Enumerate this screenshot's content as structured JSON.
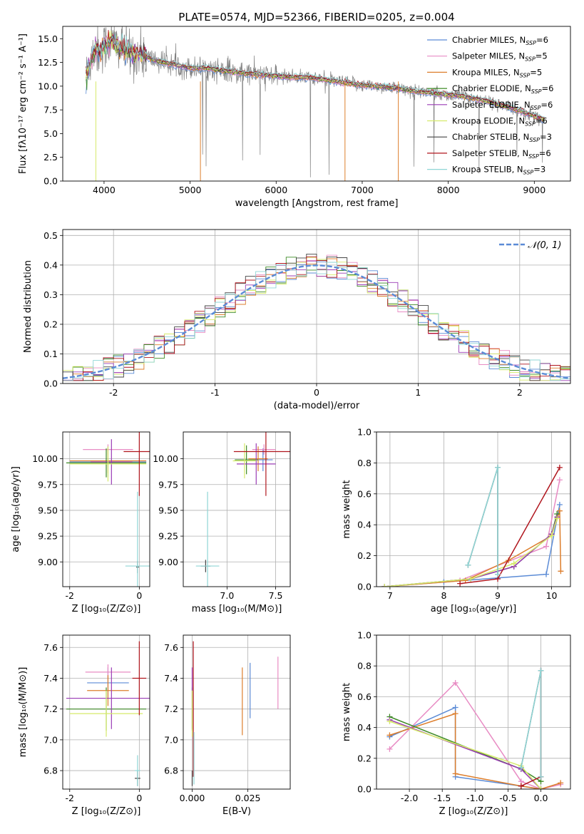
{
  "colors": {
    "chabrier_miles": "#5b8bd6",
    "salpeter_miles": "#e88cc4",
    "kroupa_miles": "#dd7e2c",
    "chabrier_elodie": "#3e8a26",
    "salpeter_elodie": "#9a3cb5",
    "kroupa_elodie": "#d6ea6a",
    "chabrier_stelib": "#444444",
    "salpeter_stelib": "#b0151d",
    "kroupa_stelib": "#8fd6d6",
    "data_spectrum": "#808080",
    "normal": "#5b8bd6",
    "grid": "#b0b0b0"
  },
  "legend": {
    "models": [
      {
        "label": "Chabrier MILES, N",
        "nssp": "=6",
        "color": "#5b8bd6"
      },
      {
        "label": "Salpeter MILES, N",
        "nssp": "=5",
        "color": "#e88cc4"
      },
      {
        "label": "Kroupa MILES, N",
        "nssp": "=5",
        "color": "#dd7e2c"
      },
      {
        "label": "Chabrier ELODIE, N",
        "nssp": "=6",
        "color": "#3e8a26"
      },
      {
        "label": "Salpeter ELODIE, N",
        "nssp": "=6",
        "color": "#9a3cb5"
      },
      {
        "label": "Kroupa ELODIE, N",
        "nssp": "=6",
        "color": "#d6ea6a"
      },
      {
        "label": "Chabrier STELIB, N",
        "nssp": "=3",
        "color": "#444444"
      },
      {
        "label": "Salpeter STELIB, N",
        "nssp": "=6",
        "color": "#b0151d"
      },
      {
        "label": "Kroupa STELIB, N",
        "nssp": "=3",
        "color": "#8fd6d6"
      }
    ],
    "nssp_subscript": "SSP",
    "normal_label": "𝒩(0, 1)"
  },
  "chart_data": [
    {
      "id": "spectrum",
      "type": "line",
      "title": "PLATE=0574, MJD=52366, FIBERID=0205, z=0.004",
      "xlabel": "wavelength [Angstrom, rest frame]",
      "ylabel": "Flux [fλ10⁻¹⁷ erg cm⁻² s⁻¹ A⁻¹]",
      "xlim": [
        3520,
        9420
      ],
      "ylim": [
        0,
        16.3
      ],
      "xticks": [
        4000,
        5000,
        6000,
        7000,
        8000,
        9000
      ],
      "yticks": [
        0.0,
        2.5,
        5.0,
        7.5,
        10.0,
        12.5,
        15.0
      ],
      "grid": false,
      "legend_position": "upper-right",
      "model_envelope": {
        "wavelength": [
          3790,
          3850,
          3900,
          3950,
          4000,
          4100,
          4200,
          4300,
          4400,
          4600,
          4800,
          5000,
          5200,
          5500,
          5800,
          6100,
          6400,
          6700,
          7000,
          7300,
          7600,
          7900,
          8200,
          8500,
          8800,
          9100
        ],
        "flux": [
          11.0,
          13.0,
          14.0,
          13.5,
          14.2,
          14.7,
          14.0,
          13.5,
          13.4,
          12.7,
          12.3,
          11.9,
          11.9,
          11.5,
          11.2,
          11.0,
          10.9,
          10.5,
          10.1,
          9.9,
          9.5,
          9.2,
          8.9,
          8.3,
          7.5,
          6.5
        ]
      }
    },
    {
      "id": "residuals",
      "type": "step",
      "xlabel": "(data-model)/error",
      "ylabel": "Normed distribution",
      "xlim": [
        -2.5,
        2.5
      ],
      "ylim": [
        0,
        0.52
      ],
      "xticks": [
        -2,
        -1,
        0,
        1,
        2
      ],
      "yticks": [
        0.0,
        0.1,
        0.2,
        0.3,
        0.4,
        0.5
      ],
      "grid": true,
      "legend_position": "upper-right",
      "normal": {
        "mean": 0,
        "sigma": 1
      }
    },
    {
      "id": "age-vs-z",
      "type": "errorbar",
      "xlabel": "Z [log₁₀(Z/Z⊙)]",
      "ylabel": "age  [log₁₀(age/yr)]",
      "xlim": [
        -2.2,
        0.3
      ],
      "ylim": [
        8.76,
        10.26
      ],
      "xticks": [
        -2,
        0
      ],
      "yticks": [
        9.0,
        9.25,
        9.5,
        9.75,
        10.0
      ],
      "grid": true,
      "points": [
        {
          "model": "chabrier_miles",
          "x": -0.9,
          "xerr": 1.1,
          "y": 9.97,
          "yerr": 0.15
        },
        {
          "model": "salpeter_miles",
          "x": -0.9,
          "xerr": 0.72,
          "y": 10.09,
          "yerr": 0.05
        },
        {
          "model": "kroupa_miles",
          "x": -0.9,
          "xerr": 1.1,
          "y": 9.98,
          "yerr": 0.12
        },
        {
          "model": "chabrier_elodie",
          "x": -0.95,
          "xerr": 1.15,
          "y": 9.96,
          "yerr": 0.14
        },
        {
          "model": "salpeter_elodie",
          "x": -0.8,
          "xerr": 0.6,
          "y": 9.97,
          "yerr": 0.22
        },
        {
          "model": "kroupa_elodie",
          "x": -0.9,
          "xerr": 1.1,
          "y": 9.95,
          "yerr": 0.17
        },
        {
          "model": "chabrier_stelib",
          "x": -0.05,
          "xerr": 0.04,
          "y": 8.95,
          "yerr": 0.06
        },
        {
          "model": "salpeter_stelib",
          "x": 0.0,
          "xerr": 0.45,
          "y": 10.07,
          "yerr": 0.43
        },
        {
          "model": "kroupa_stelib",
          "x": -0.05,
          "xerr": 0.35,
          "y": 8.96,
          "yerr": 0.72
        }
      ]
    },
    {
      "id": "age-vs-mass",
      "type": "errorbar",
      "xlabel": "mass [log₁₀(M/M⊙)]",
      "ylabel": "",
      "xlim": [
        6.55,
        7.65
      ],
      "ylim": [
        8.76,
        10.26
      ],
      "xticks": [
        7.0,
        7.5
      ],
      "yticks": [
        9.0,
        9.25,
        9.5,
        9.75,
        10.0
      ],
      "grid": true,
      "points": [
        {
          "model": "chabrier_miles",
          "x": 7.37,
          "xerr": 0.1,
          "y": 9.99,
          "yerr": 0.11
        },
        {
          "model": "salpeter_miles",
          "x": 7.38,
          "xerr": 0.12,
          "y": 10.09,
          "yerr": 0.05
        },
        {
          "model": "kroupa_miles",
          "x": 7.32,
          "xerr": 0.1,
          "y": 10.0,
          "yerr": 0.12
        },
        {
          "model": "chabrier_elodie",
          "x": 7.2,
          "xerr": 0.12,
          "y": 9.99,
          "yerr": 0.14
        },
        {
          "model": "salpeter_elodie",
          "x": 7.3,
          "xerr": 0.2,
          "y": 9.95,
          "yerr": 0.2
        },
        {
          "model": "kroupa_elodie",
          "x": 7.18,
          "xerr": 0.12,
          "y": 9.98,
          "yerr": 0.17
        },
        {
          "model": "chabrier_stelib",
          "x": 6.78,
          "xerr": 0.05,
          "y": 8.96,
          "yerr": 0.06
        },
        {
          "model": "salpeter_stelib",
          "x": 7.4,
          "xerr": 0.33,
          "y": 10.07,
          "yerr": 0.43
        },
        {
          "model": "kroupa_stelib",
          "x": 6.8,
          "xerr": 0.12,
          "y": 8.96,
          "yerr": 0.72
        }
      ]
    },
    {
      "id": "mass-vs-z",
      "type": "errorbar",
      "xlabel": "Z [log₁₀(Z/Z⊙)]",
      "ylabel": "mass [log₁₀(M/M⊙)]",
      "xlim": [
        -2.2,
        0.3
      ],
      "ylim": [
        6.68,
        7.68
      ],
      "xticks": [
        -2,
        0
      ],
      "yticks": [
        6.8,
        7.0,
        7.2,
        7.4,
        7.6
      ],
      "grid": true,
      "points": [
        {
          "model": "chabrier_miles",
          "x": -0.9,
          "xerr": 0.6,
          "y": 7.37,
          "yerr": 0.1
        },
        {
          "model": "salpeter_miles",
          "x": -0.9,
          "xerr": 0.65,
          "y": 7.44,
          "yerr": 0.05
        },
        {
          "model": "kroupa_miles",
          "x": -0.9,
          "xerr": 0.6,
          "y": 7.32,
          "yerr": 0.1
        },
        {
          "model": "chabrier_elodie",
          "x": -0.95,
          "xerr": 1.15,
          "y": 7.2,
          "yerr": 0.14
        },
        {
          "model": "salpeter_elodie",
          "x": -0.8,
          "xerr": 1.3,
          "y": 7.27,
          "yerr": 0.2
        },
        {
          "model": "kroupa_elodie",
          "x": -0.95,
          "xerr": 1.05,
          "y": 7.17,
          "yerr": 0.15
        },
        {
          "model": "chabrier_stelib",
          "x": -0.05,
          "xerr": 0.08,
          "y": 6.75,
          "yerr": 0.05
        },
        {
          "model": "salpeter_stelib",
          "x": 0.0,
          "xerr": 0.2,
          "y": 7.4,
          "yerr": 0.24
        },
        {
          "model": "kroupa_stelib",
          "x": -0.05,
          "xerr": 0.08,
          "y": 6.8,
          "yerr": 0.1
        }
      ]
    },
    {
      "id": "mass-vs-ebv",
      "type": "errorbar",
      "xlabel": "E(B-V)",
      "ylabel": "",
      "xlim": [
        -0.004,
        0.044
      ],
      "ylim": [
        6.68,
        7.68
      ],
      "xticks": [
        0.0,
        0.025
      ],
      "yticks": [
        6.8,
        7.0,
        7.2,
        7.4,
        7.6
      ],
      "grid": true,
      "points": [
        {
          "model": "chabrier_miles",
          "x": 0.026,
          "xerr": 0,
          "y": 7.32,
          "yerr": 0.18
        },
        {
          "model": "salpeter_miles",
          "x": 0.0385,
          "xerr": 0,
          "y": 7.37,
          "yerr": 0.17
        },
        {
          "model": "kroupa_miles",
          "x": 0.0225,
          "xerr": 0,
          "y": 7.25,
          "yerr": 0.22
        },
        {
          "model": "chabrier_elodie",
          "x": 0.0,
          "xerr": 0,
          "y": 7.2,
          "yerr": 0.14
        },
        {
          "model": "salpeter_elodie",
          "x": 0.0,
          "xerr": 0,
          "y": 7.27,
          "yerr": 0.2
        },
        {
          "model": "kroupa_elodie",
          "x": 0.0,
          "xerr": 0,
          "y": 7.17,
          "yerr": 0.15
        },
        {
          "model": "chabrier_stelib",
          "x": 0.0,
          "xerr": 0,
          "y": 6.75,
          "yerr": 0.05
        },
        {
          "model": "salpeter_stelib",
          "x": 0.0005,
          "xerr": 0,
          "y": 7.2,
          "yerr": 0.44
        },
        {
          "model": "kroupa_stelib",
          "x": 0.0008,
          "xerr": 0,
          "y": 6.88,
          "yerr": 0.17
        }
      ]
    },
    {
      "id": "weight-vs-age",
      "type": "line",
      "xlabel": "age  [log₁₀(age/yr)]",
      "ylabel": "mass weight",
      "xlim": [
        6.75,
        10.35
      ],
      "ylim": [
        0.0,
        1.0
      ],
      "xticks": [
        7,
        8,
        9,
        10
      ],
      "yticks": [
        0.0,
        0.2,
        0.4,
        0.6,
        0.8,
        1.0
      ],
      "grid": true,
      "series": [
        {
          "model": "chabrier_miles",
          "x": [
            6.9,
            8.0,
            9.9,
            10.15
          ],
          "y": [
            0.0,
            0.03,
            0.08,
            0.53
          ]
        },
        {
          "model": "salpeter_miles",
          "x": [
            6.9,
            8.3,
            9.9,
            10.15
          ],
          "y": [
            0.0,
            0.04,
            0.26,
            0.69
          ]
        },
        {
          "model": "kroupa_miles",
          "x": [
            6.9,
            8.4,
            9.2,
            10.0,
            10.15,
            10.17
          ],
          "y": [
            0.0,
            0.04,
            0.17,
            0.33,
            0.49,
            0.1
          ]
        },
        {
          "model": "chabrier_elodie",
          "x": [
            6.9,
            8.5,
            9.3,
            10.0,
            10.1
          ],
          "y": [
            0.0,
            0.05,
            0.13,
            0.34,
            0.47
          ]
        },
        {
          "model": "salpeter_elodie",
          "x": [
            6.9,
            8.5,
            9.3,
            10.0,
            10.1
          ],
          "y": [
            0.0,
            0.05,
            0.13,
            0.34,
            0.45
          ]
        },
        {
          "model": "kroupa_elodie",
          "x": [
            6.9,
            8.5,
            9.3,
            10.0,
            10.1
          ],
          "y": [
            0.0,
            0.05,
            0.15,
            0.33,
            0.44
          ]
        },
        {
          "model": "chabrier_stelib",
          "x": [
            8.45,
            9.0,
            9.0
          ],
          "y": [
            0.14,
            0.77,
            0.08
          ]
        },
        {
          "model": "salpeter_stelib",
          "x": [
            8.3,
            9.0,
            10.15
          ],
          "y": [
            0.02,
            0.05,
            0.77
          ]
        },
        {
          "model": "kroupa_stelib",
          "x": [
            8.45,
            9.0,
            9.0
          ],
          "y": [
            0.14,
            0.77,
            0.08
          ]
        }
      ]
    },
    {
      "id": "weight-vs-z",
      "type": "line",
      "xlabel": "Z [log₁₀(Z/Z⊙)]",
      "ylabel": "mass weight",
      "xlim": [
        -2.5,
        0.45
      ],
      "ylim": [
        0.0,
        1.0
      ],
      "xticks": [
        -2.0,
        -1.5,
        -1.0,
        -0.5,
        0.0
      ],
      "yticks": [
        0.0,
        0.2,
        0.4,
        0.6,
        0.8,
        1.0
      ],
      "grid": true,
      "series": [
        {
          "model": "chabrier_miles",
          "x": [
            -2.3,
            -1.3,
            -1.3,
            -0.3,
            0.0
          ],
          "y": [
            0.34,
            0.53,
            0.08,
            0.02,
            0.0
          ]
        },
        {
          "model": "salpeter_miles",
          "x": [
            -2.3,
            -1.3,
            -0.3,
            0.0,
            0.3
          ],
          "y": [
            0.26,
            0.69,
            0.05,
            0.0,
            0.03
          ]
        },
        {
          "model": "kroupa_miles",
          "x": [
            -2.3,
            -1.3,
            -1.3,
            -0.3,
            0.0,
            0.3
          ],
          "y": [
            0.35,
            0.49,
            0.1,
            0.02,
            0.0,
            0.04
          ]
        },
        {
          "model": "chabrier_elodie",
          "x": [
            -2.3,
            -0.3,
            0.0
          ],
          "y": [
            0.47,
            0.13,
            0.05
          ]
        },
        {
          "model": "salpeter_elodie",
          "x": [
            -2.3,
            -0.3,
            0.0
          ],
          "y": [
            0.45,
            0.13,
            0.0
          ]
        },
        {
          "model": "kroupa_elodie",
          "x": [
            -2.3,
            -0.3,
            0.0
          ],
          "y": [
            0.44,
            0.15,
            0.0
          ]
        },
        {
          "model": "chabrier_stelib",
          "x": [
            -0.3,
            0.0,
            0.0
          ],
          "y": [
            0.14,
            0.77,
            0.08
          ]
        },
        {
          "model": "salpeter_stelib",
          "x": [
            -0.3,
            0.0,
            0.0
          ],
          "y": [
            0.02,
            0.08,
            0.77
          ]
        },
        {
          "model": "kroupa_stelib",
          "x": [
            -0.3,
            0.0,
            0.0
          ],
          "y": [
            0.14,
            0.77,
            0.08
          ]
        }
      ]
    }
  ]
}
